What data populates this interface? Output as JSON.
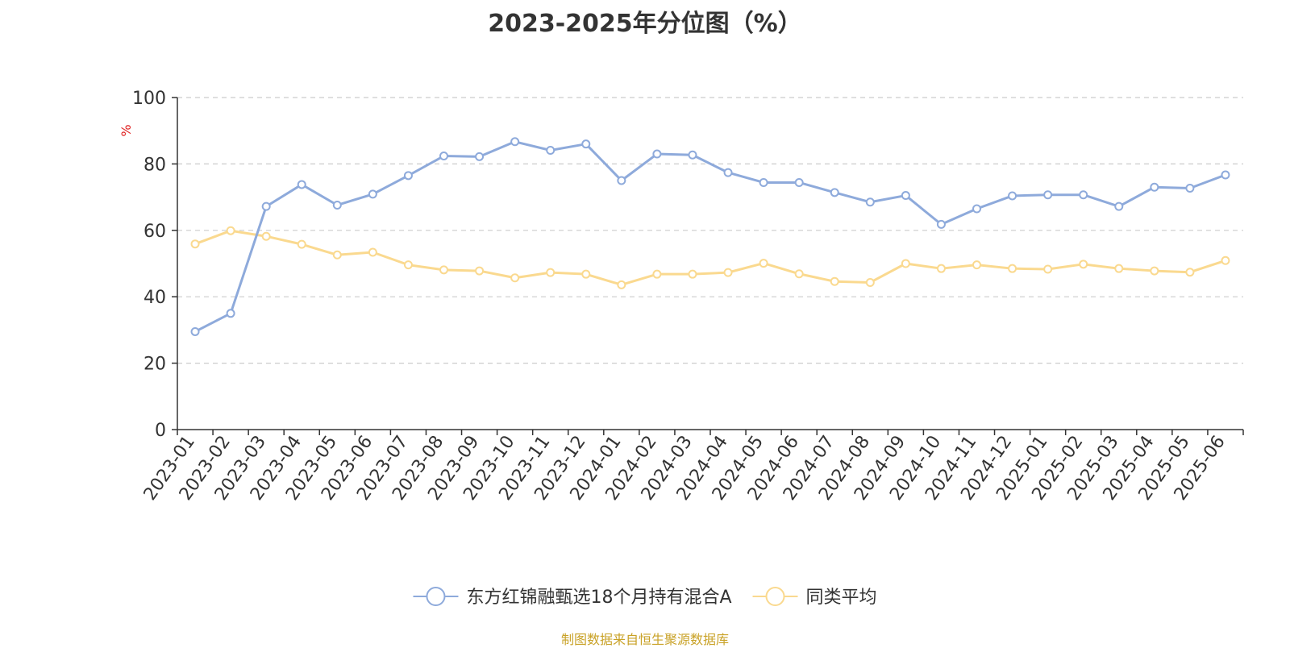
{
  "chart_data": {
    "type": "line",
    "title": "2023-2025年分位图（%）",
    "ylabel": "%",
    "xlabel": "",
    "ylim": [
      0,
      100
    ],
    "yticks": [
      0,
      20,
      40,
      60,
      80,
      100
    ],
    "grid": true,
    "legend_position": "bottom",
    "categories": [
      "2023-01",
      "2023-02",
      "2023-03",
      "2023-04",
      "2023-05",
      "2023-06",
      "2023-07",
      "2023-08",
      "2023-09",
      "2023-10",
      "2023-11",
      "2023-12",
      "2024-01",
      "2024-02",
      "2024-03",
      "2024-04",
      "2024-05",
      "2024-06",
      "2024-07",
      "2024-08",
      "2024-09",
      "2024-10",
      "2024-11",
      "2024-12",
      "2025-01",
      "2025-02",
      "2025-03",
      "2025-04",
      "2025-05",
      "2025-06"
    ],
    "series": [
      {
        "name": "东方红锦融甄选18个月持有混合A",
        "color": "#8eaadb",
        "values": [
          29.5,
          35.0,
          67.2,
          73.8,
          67.6,
          70.9,
          76.5,
          82.4,
          82.2,
          86.7,
          84.1,
          86.0,
          75.0,
          83.0,
          82.7,
          77.4,
          74.4,
          74.4,
          71.4,
          68.5,
          70.5,
          61.8,
          66.5,
          70.4,
          70.7,
          70.7,
          67.2,
          73.0,
          72.7,
          76.7
        ]
      },
      {
        "name": "同类平均",
        "color": "#fad98f",
        "values": [
          55.9,
          59.9,
          58.2,
          55.8,
          52.6,
          53.4,
          49.6,
          48.1,
          47.8,
          45.7,
          47.3,
          46.8,
          43.6,
          46.8,
          46.8,
          47.3,
          50.1,
          46.9,
          44.6,
          44.3,
          50.0,
          48.5,
          49.6,
          48.5,
          48.3,
          49.8,
          48.5,
          47.8,
          47.4,
          50.9
        ]
      }
    ]
  },
  "source_note": "制图数据来自恒生聚源数据库"
}
